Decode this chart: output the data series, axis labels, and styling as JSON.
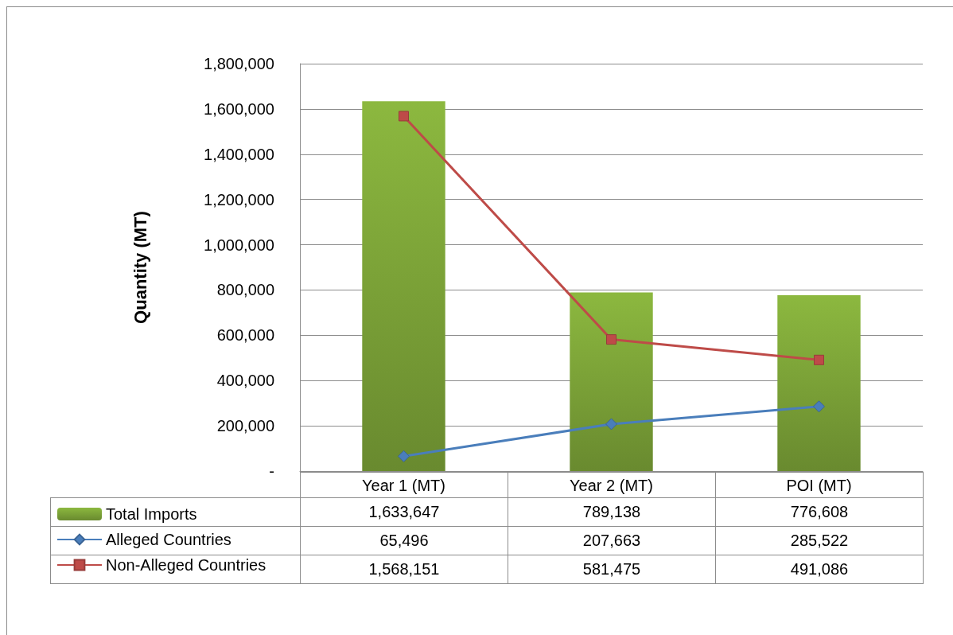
{
  "chart_data": {
    "type": "bar",
    "ylabel": "Quantity (MT)",
    "categories": [
      "Year 1 (MT)",
      "Year 2 (MT)",
      "POI (MT)"
    ],
    "series": [
      {
        "name": "Total Imports",
        "color": "#8cb83f",
        "values": [
          1633647,
          789138,
          776608
        ],
        "value_labels": [
          "1,633,647",
          "789,138",
          "776,608"
        ]
      },
      {
        "name": "Alleged Countries",
        "type": "line",
        "color": "#4a7ebb",
        "marker": "diamond",
        "values": [
          65496,
          207663,
          285522
        ],
        "value_labels": [
          "65,496",
          "207,663",
          "285,522"
        ]
      },
      {
        "name": "Non-Alleged Countries",
        "type": "line",
        "color": "#be4b48",
        "marker": "square",
        "values": [
          1568151,
          581475,
          491086
        ],
        "value_labels": [
          "1,568,151",
          "581,475",
          "491,086"
        ]
      }
    ],
    "ylim": [
      0,
      1800000
    ],
    "yticks": [
      {
        "value": 0,
        "label": "-"
      },
      {
        "value": 200000,
        "label": "200,000"
      },
      {
        "value": 400000,
        "label": "400,000"
      },
      {
        "value": 600000,
        "label": "600,000"
      },
      {
        "value": 800000,
        "label": "800,000"
      },
      {
        "value": 1000000,
        "label": "1,000,000"
      },
      {
        "value": 1200000,
        "label": "1,200,000"
      },
      {
        "value": 1400000,
        "label": "1,400,000"
      },
      {
        "value": 1600000,
        "label": "1,600,000"
      },
      {
        "value": 1800000,
        "label": "1,800,000"
      }
    ],
    "grid": "y",
    "legend": "bottom left"
  }
}
